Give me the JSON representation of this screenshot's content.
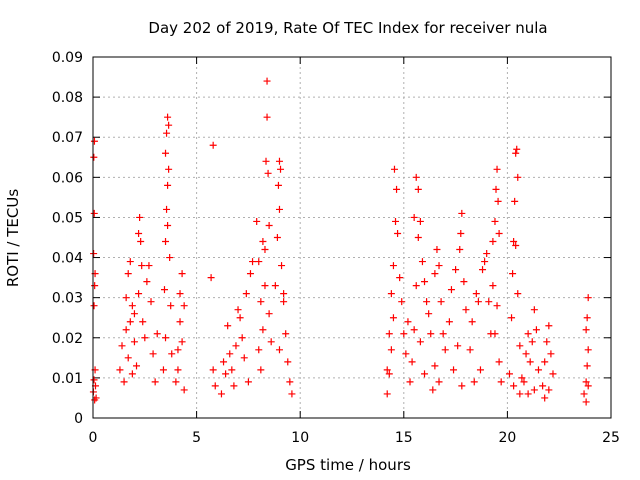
{
  "chart_data": {
    "type": "scatter",
    "title": "Day 202 of 2019, Rate Of TEC Index for receiver nula",
    "xlabel": "GPS time / hours",
    "ylabel": "ROTI / TECUs",
    "xlim": [
      0,
      25
    ],
    "ylim": [
      0,
      0.09
    ],
    "x_ticks": [
      0,
      5,
      10,
      15,
      20,
      25
    ],
    "y_ticks": [
      0,
      0.01,
      0.02,
      0.03,
      0.04,
      0.05,
      0.06,
      0.07,
      0.08,
      0.09
    ],
    "x_tick_labels": [
      "0",
      "5",
      "10",
      "15",
      "20",
      "25"
    ],
    "y_tick_labels": [
      "0",
      "0.01",
      "0.02",
      "0.03",
      "0.04",
      "0.05",
      "0.06",
      "0.07",
      "0.08",
      "0.09"
    ],
    "grid": true,
    "marker": "plus",
    "color": "#ff0000",
    "series": [
      {
        "points": [
          [
            0.02,
            0.0065
          ],
          [
            0.05,
            0.0095
          ],
          [
            0.08,
            0.0045
          ],
          [
            0.1,
            0.012
          ],
          [
            0.12,
            0.008
          ],
          [
            0.15,
            0.005
          ],
          [
            0.05,
            0.028
          ],
          [
            0.08,
            0.033
          ],
          [
            0.1,
            0.036
          ],
          [
            0.03,
            0.041
          ],
          [
            0.06,
            0.051
          ],
          [
            0.04,
            0.065
          ],
          [
            0.07,
            0.069
          ],
          [
            1.3,
            0.012
          ],
          [
            1.4,
            0.018
          ],
          [
            1.5,
            0.009
          ],
          [
            1.6,
            0.022
          ],
          [
            1.7,
            0.015
          ],
          [
            1.8,
            0.024
          ],
          [
            1.9,
            0.011
          ],
          [
            2.0,
            0.019
          ],
          [
            1.6,
            0.03
          ],
          [
            1.7,
            0.036
          ],
          [
            1.8,
            0.039
          ],
          [
            1.9,
            0.028
          ],
          [
            2.0,
            0.026
          ],
          [
            2.1,
            0.013
          ],
          [
            2.2,
            0.031
          ],
          [
            2.2,
            0.046
          ],
          [
            2.25,
            0.05
          ],
          [
            2.3,
            0.044
          ],
          [
            2.35,
            0.038
          ],
          [
            2.4,
            0.024
          ],
          [
            2.5,
            0.02
          ],
          [
            2.6,
            0.034
          ],
          [
            2.7,
            0.038
          ],
          [
            2.8,
            0.029
          ],
          [
            2.9,
            0.016
          ],
          [
            3.0,
            0.009
          ],
          [
            3.1,
            0.021
          ],
          [
            3.4,
            0.012
          ],
          [
            3.5,
            0.02
          ],
          [
            3.45,
            0.032
          ],
          [
            3.5,
            0.044
          ],
          [
            3.55,
            0.052
          ],
          [
            3.6,
            0.058
          ],
          [
            3.55,
            0.071
          ],
          [
            3.6,
            0.075
          ],
          [
            3.65,
            0.062
          ],
          [
            3.7,
            0.04
          ],
          [
            3.75,
            0.028
          ],
          [
            3.8,
            0.016
          ],
          [
            3.5,
            0.066
          ],
          [
            3.65,
            0.073
          ],
          [
            3.6,
            0.048
          ],
          [
            4.0,
            0.009
          ],
          [
            4.1,
            0.017
          ],
          [
            4.2,
            0.024
          ],
          [
            4.3,
            0.036
          ],
          [
            4.4,
            0.028
          ],
          [
            4.2,
            0.031
          ],
          [
            4.1,
            0.012
          ],
          [
            4.4,
            0.007
          ],
          [
            4.3,
            0.019
          ],
          [
            5.8,
            0.068
          ],
          [
            5.7,
            0.035
          ],
          [
            5.8,
            0.012
          ],
          [
            5.9,
            0.008
          ],
          [
            6.2,
            0.006
          ],
          [
            6.3,
            0.014
          ],
          [
            6.5,
            0.023
          ],
          [
            6.7,
            0.012
          ],
          [
            6.9,
            0.018
          ],
          [
            7.0,
            0.027
          ],
          [
            7.2,
            0.02
          ],
          [
            7.4,
            0.031
          ],
          [
            7.6,
            0.036
          ],
          [
            7.7,
            0.039
          ],
          [
            7.5,
            0.009
          ],
          [
            7.3,
            0.015
          ],
          [
            7.1,
            0.025
          ],
          [
            6.8,
            0.008
          ],
          [
            6.6,
            0.016
          ],
          [
            6.4,
            0.011
          ],
          [
            7.9,
            0.049
          ],
          [
            8.0,
            0.039
          ],
          [
            8.1,
            0.029
          ],
          [
            8.2,
            0.044
          ],
          [
            8.3,
            0.042
          ],
          [
            8.4,
            0.084
          ],
          [
            8.4,
            0.075
          ],
          [
            8.35,
            0.064
          ],
          [
            8.45,
            0.061
          ],
          [
            8.5,
            0.048
          ],
          [
            8.3,
            0.033
          ],
          [
            8.2,
            0.022
          ],
          [
            8.1,
            0.012
          ],
          [
            8.0,
            0.017
          ],
          [
            8.5,
            0.026
          ],
          [
            8.6,
            0.019
          ],
          [
            8.8,
            0.033
          ],
          [
            8.9,
            0.045
          ],
          [
            8.95,
            0.058
          ],
          [
            9.0,
            0.064
          ],
          [
            9.05,
            0.062
          ],
          [
            9.0,
            0.052
          ],
          [
            9.1,
            0.038
          ],
          [
            9.2,
            0.029
          ],
          [
            9.3,
            0.021
          ],
          [
            9.4,
            0.014
          ],
          [
            9.5,
            0.009
          ],
          [
            9.6,
            0.006
          ],
          [
            9.2,
            0.031
          ],
          [
            9.0,
            0.017
          ],
          [
            14.2,
            0.006
          ],
          [
            14.3,
            0.011
          ],
          [
            14.4,
            0.017
          ],
          [
            14.5,
            0.025
          ],
          [
            14.6,
            0.049
          ],
          [
            14.55,
            0.062
          ],
          [
            14.65,
            0.057
          ],
          [
            14.7,
            0.046
          ],
          [
            14.8,
            0.035
          ],
          [
            14.9,
            0.029
          ],
          [
            15.0,
            0.021
          ],
          [
            15.1,
            0.016
          ],
          [
            15.2,
            0.024
          ],
          [
            14.5,
            0.038
          ],
          [
            14.4,
            0.031
          ],
          [
            14.3,
            0.021
          ],
          [
            14.2,
            0.012
          ],
          [
            15.5,
            0.05
          ],
          [
            15.6,
            0.06
          ],
          [
            15.7,
            0.057
          ],
          [
            15.8,
            0.049
          ],
          [
            15.9,
            0.039
          ],
          [
            16.0,
            0.034
          ],
          [
            16.1,
            0.029
          ],
          [
            16.2,
            0.026
          ],
          [
            15.7,
            0.045
          ],
          [
            15.6,
            0.033
          ],
          [
            15.5,
            0.022
          ],
          [
            15.4,
            0.014
          ],
          [
            15.3,
            0.009
          ],
          [
            15.8,
            0.019
          ],
          [
            16.0,
            0.011
          ],
          [
            16.3,
            0.021
          ],
          [
            16.5,
            0.036
          ],
          [
            16.6,
            0.042
          ],
          [
            16.7,
            0.038
          ],
          [
            16.8,
            0.029
          ],
          [
            16.9,
            0.021
          ],
          [
            17.0,
            0.017
          ],
          [
            16.5,
            0.013
          ],
          [
            16.7,
            0.009
          ],
          [
            16.4,
            0.007
          ],
          [
            17.2,
            0.024
          ],
          [
            17.3,
            0.032
          ],
          [
            17.5,
            0.037
          ],
          [
            17.7,
            0.042
          ],
          [
            17.8,
            0.051
          ],
          [
            17.75,
            0.046
          ],
          [
            17.9,
            0.034
          ],
          [
            18.0,
            0.027
          ],
          [
            17.6,
            0.018
          ],
          [
            17.4,
            0.012
          ],
          [
            17.8,
            0.008
          ],
          [
            18.2,
            0.017
          ],
          [
            18.3,
            0.024
          ],
          [
            18.5,
            0.031
          ],
          [
            18.6,
            0.029
          ],
          [
            18.8,
            0.037
          ],
          [
            18.9,
            0.039
          ],
          [
            19.0,
            0.041
          ],
          [
            19.1,
            0.029
          ],
          [
            19.2,
            0.021
          ],
          [
            18.7,
            0.012
          ],
          [
            18.4,
            0.009
          ],
          [
            19.3,
            0.044
          ],
          [
            19.4,
            0.049
          ],
          [
            19.45,
            0.057
          ],
          [
            19.5,
            0.062
          ],
          [
            19.55,
            0.054
          ],
          [
            19.6,
            0.046
          ],
          [
            19.5,
            0.028
          ],
          [
            19.4,
            0.021
          ],
          [
            19.6,
            0.014
          ],
          [
            19.7,
            0.009
          ],
          [
            19.3,
            0.033
          ],
          [
            20.1,
            0.011
          ],
          [
            20.2,
            0.025
          ],
          [
            20.25,
            0.036
          ],
          [
            20.3,
            0.044
          ],
          [
            20.35,
            0.054
          ],
          [
            20.4,
            0.066
          ],
          [
            20.45,
            0.067
          ],
          [
            20.5,
            0.06
          ],
          [
            20.4,
            0.043
          ],
          [
            20.5,
            0.031
          ],
          [
            20.6,
            0.018
          ],
          [
            20.7,
            0.01
          ],
          [
            20.3,
            0.008
          ],
          [
            20.6,
            0.006
          ],
          [
            20.8,
            0.009
          ],
          [
            20.9,
            0.016
          ],
          [
            21.0,
            0.021
          ],
          [
            21.1,
            0.014
          ],
          [
            21.2,
            0.019
          ],
          [
            21.3,
            0.027
          ],
          [
            21.4,
            0.022
          ],
          [
            21.5,
            0.012
          ],
          [
            21.3,
            0.007
          ],
          [
            21.0,
            0.006
          ],
          [
            21.7,
            0.008
          ],
          [
            21.8,
            0.014
          ],
          [
            21.9,
            0.019
          ],
          [
            22.0,
            0.023
          ],
          [
            22.1,
            0.016
          ],
          [
            22.2,
            0.011
          ],
          [
            22.0,
            0.007
          ],
          [
            21.8,
            0.005
          ],
          [
            23.7,
            0.006
          ],
          [
            23.8,
            0.009
          ],
          [
            23.85,
            0.013
          ],
          [
            23.9,
            0.017
          ],
          [
            23.8,
            0.022
          ],
          [
            23.85,
            0.025
          ],
          [
            23.9,
            0.03
          ],
          [
            23.8,
            0.004
          ],
          [
            23.9,
            0.008
          ]
        ]
      }
    ]
  }
}
